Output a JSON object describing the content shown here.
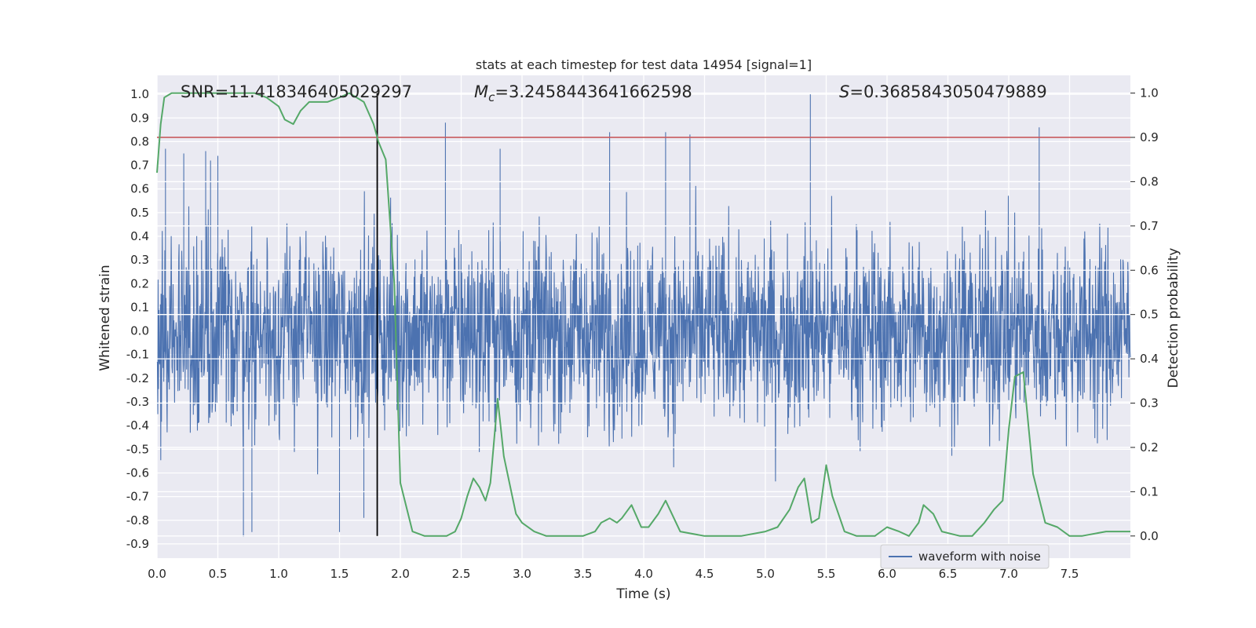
{
  "chart_data": {
    "type": "line",
    "title": "stats at each timestep for test data 14954 [signal=1]",
    "xlabel": "Time (s)",
    "ylabel": "Whitened strain",
    "y2label": "Detection probability",
    "xlim": [
      0.0,
      8.0
    ],
    "ylim": [
      -0.96,
      1.08
    ],
    "y2lim": [
      -0.05,
      1.04
    ],
    "xticks": [
      "0.0",
      "0.5",
      "1.0",
      "1.5",
      "2.0",
      "2.5",
      "3.0",
      "3.5",
      "4.0",
      "4.5",
      "5.0",
      "5.5",
      "6.0",
      "6.5",
      "7.0",
      "7.5"
    ],
    "yticks": [
      "1.0",
      "0.9",
      "0.8",
      "0.7",
      "0.6",
      "0.5",
      "0.4",
      "0.3",
      "0.2",
      "0.1",
      "0.0",
      "-0.1",
      "-0.2",
      "-0.3",
      "-0.4",
      "-0.5",
      "-0.6",
      "-0.7",
      "-0.8",
      "-0.9"
    ],
    "y2ticks": [
      "1.0",
      "0.9",
      "0.8",
      "0.7",
      "0.6",
      "0.5",
      "0.4",
      "0.3",
      "0.2",
      "0.1",
      "0.0"
    ],
    "grid": true,
    "legend_position": "lower-right",
    "annotations": {
      "snr": "SNR=11.418346405029297",
      "mc_symbol": "M",
      "mc_sub": "c",
      "mc_value": "=3.2458443641662598",
      "s_symbol": "S",
      "s_value": "=0.3685843050479889"
    },
    "threshold": {
      "y2": 0.9,
      "color": "#c44e52"
    },
    "marker_time": 1.81,
    "series": [
      {
        "name": "waveform with noise",
        "axis": "left",
        "color": "#4c72b0",
        "description": "dense noise 0.0-8.0 s, envelope approx ±0.45 with spikes",
        "spikes_x": [
          0.07,
          0.22,
          0.4,
          0.44,
          0.5,
          0.71,
          0.78,
          1.5,
          1.7,
          2.37,
          2.82,
          3.72,
          4.18,
          4.38,
          5.37,
          7.25
        ],
        "spikes_y": [
          0.77,
          0.75,
          0.76,
          0.72,
          0.74,
          -0.87,
          -0.85,
          -0.85,
          -0.79,
          0.88,
          0.77,
          0.84,
          0.84,
          0.83,
          1.0,
          0.86
        ]
      },
      {
        "name": "detection probability",
        "axis": "right",
        "color": "#55a868",
        "x": [
          0.0,
          0.03,
          0.06,
          0.12,
          0.2,
          0.4,
          0.6,
          0.8,
          0.9,
          1.0,
          1.05,
          1.12,
          1.18,
          1.25,
          1.4,
          1.5,
          1.58,
          1.64,
          1.7,
          1.78,
          1.82,
          1.88,
          1.95,
          2.0,
          2.1,
          2.2,
          2.3,
          2.38,
          2.45,
          2.5,
          2.55,
          2.6,
          2.65,
          2.7,
          2.74,
          2.8,
          2.85,
          2.95,
          3.0,
          3.1,
          3.2,
          3.3,
          3.5,
          3.6,
          3.65,
          3.72,
          3.78,
          3.82,
          3.9,
          3.98,
          4.04,
          4.12,
          4.18,
          4.3,
          4.5,
          4.8,
          5.0,
          5.1,
          5.2,
          5.27,
          5.32,
          5.38,
          5.44,
          5.5,
          5.55,
          5.65,
          5.75,
          5.9,
          6.0,
          6.1,
          6.18,
          6.26,
          6.3,
          6.38,
          6.45,
          6.6,
          6.7,
          6.8,
          6.88,
          6.95,
          7.0,
          7.05,
          7.12,
          7.2,
          7.3,
          7.4,
          7.5,
          7.6,
          7.8,
          7.9,
          8.0
        ],
        "y": [
          0.82,
          0.93,
          0.99,
          1.0,
          1.0,
          1.0,
          1.0,
          1.0,
          0.99,
          0.97,
          0.94,
          0.93,
          0.96,
          0.98,
          0.98,
          0.99,
          1.0,
          0.99,
          0.98,
          0.93,
          0.89,
          0.85,
          0.57,
          0.12,
          0.01,
          0.0,
          0.0,
          0.0,
          0.01,
          0.04,
          0.09,
          0.13,
          0.11,
          0.08,
          0.12,
          0.31,
          0.18,
          0.05,
          0.03,
          0.01,
          0.0,
          0.0,
          0.0,
          0.01,
          0.03,
          0.04,
          0.03,
          0.04,
          0.07,
          0.02,
          0.02,
          0.05,
          0.08,
          0.01,
          0.0,
          0.0,
          0.01,
          0.02,
          0.06,
          0.11,
          0.13,
          0.03,
          0.04,
          0.16,
          0.09,
          0.01,
          0.0,
          0.0,
          0.02,
          0.01,
          0.0,
          0.03,
          0.07,
          0.05,
          0.01,
          0.0,
          0.0,
          0.03,
          0.06,
          0.08,
          0.24,
          0.36,
          0.37,
          0.14,
          0.03,
          0.02,
          0.0,
          0.0,
          0.01,
          0.01,
          0.01
        ]
      },
      {
        "name": "threshold",
        "axis": "right",
        "color": "#c44e52",
        "y": 0.9
      }
    ],
    "legend": [
      "waveform with noise"
    ]
  },
  "colors": {
    "background": "#eaeaf2",
    "grid": "#ffffff",
    "waveform": "#4c72b0",
    "probability": "#55a868",
    "threshold": "#c44e52",
    "marker": "#000000"
  }
}
